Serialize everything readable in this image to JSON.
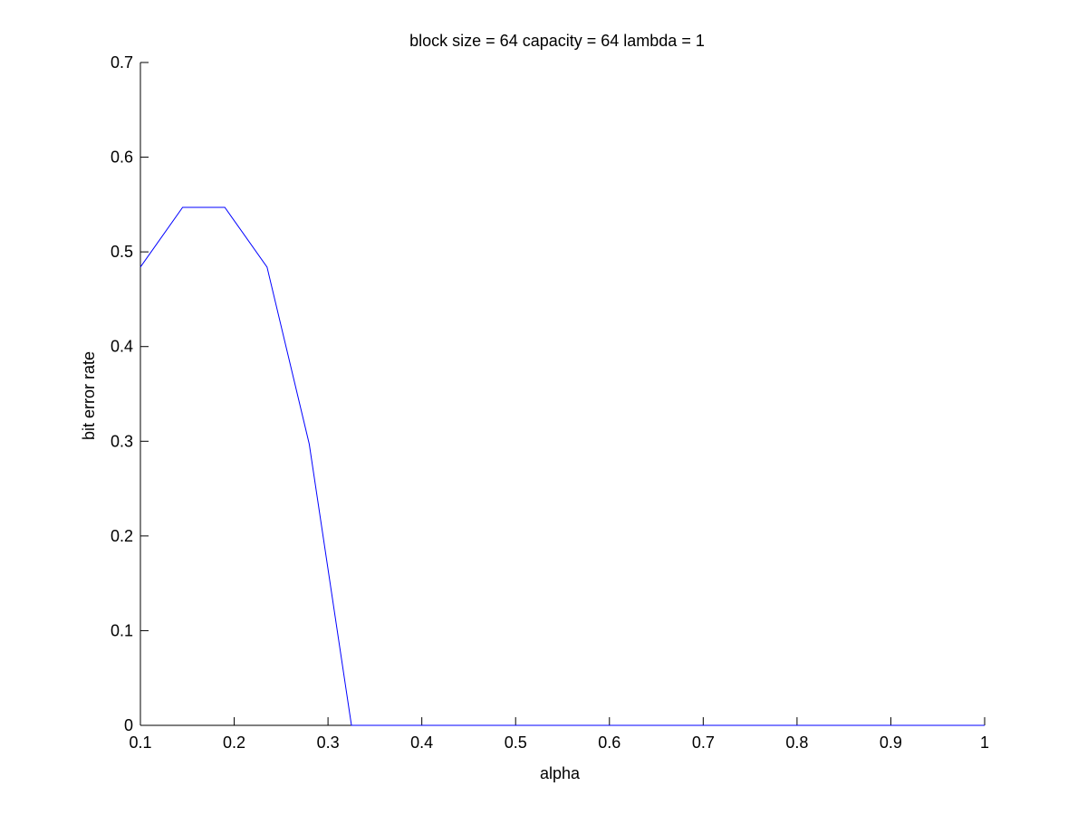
{
  "chart_data": {
    "type": "line",
    "title": "block size = 64  capacity = 64  lambda = 1",
    "xlabel": "alpha",
    "ylabel": "bit error rate",
    "xlim": [
      0.1,
      1
    ],
    "ylim": [
      0,
      0.7
    ],
    "xticks": [
      "0.1",
      "0.2",
      "0.3",
      "0.4",
      "0.5",
      "0.6",
      "0.7",
      "0.8",
      "0.9",
      "1"
    ],
    "yticks": [
      "0",
      "0.1",
      "0.2",
      "0.3",
      "0.4",
      "0.5",
      "0.6",
      "0.7"
    ],
    "grid": false,
    "series": [
      {
        "color": "#0000ff",
        "x": [
          0.1,
          0.145,
          0.19,
          0.235,
          0.28,
          0.325,
          0.37,
          0.415,
          0.46,
          0.505,
          0.55,
          0.595,
          0.64,
          0.685,
          0.73,
          0.775,
          0.82,
          0.865,
          0.91,
          0.955,
          1.0
        ],
        "y": [
          0.484,
          0.547,
          0.547,
          0.484,
          0.297,
          0,
          0,
          0,
          0,
          0,
          0,
          0,
          0,
          0,
          0,
          0,
          0,
          0,
          0,
          0,
          0
        ]
      }
    ]
  }
}
